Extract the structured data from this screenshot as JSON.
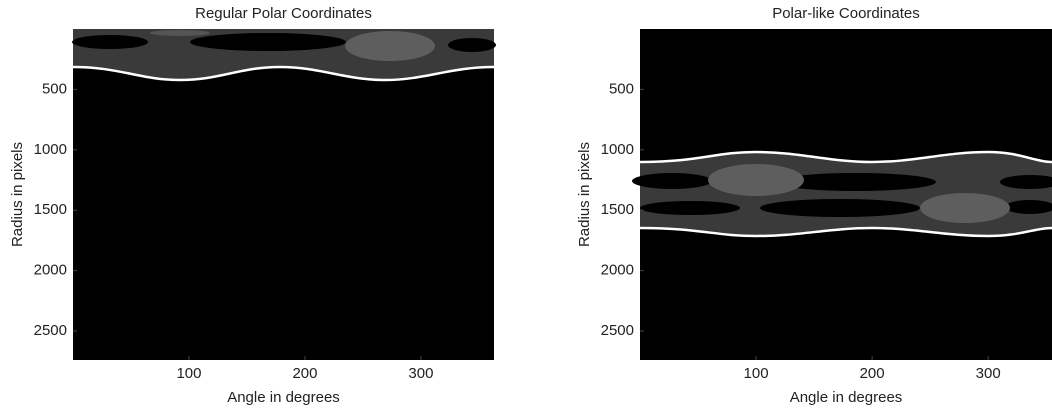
{
  "chart_data": [
    {
      "type": "image",
      "title": "Regular Polar Coordinates",
      "xlabel": "Angle in degrees",
      "ylabel": "Radius in pixels",
      "xlim": [
        0,
        363
      ],
      "ylim": [
        0,
        2740
      ],
      "y_reversed": true,
      "xticks": [
        100,
        200,
        300
      ],
      "yticks": [
        500,
        1000,
        1500,
        2000,
        2500
      ],
      "colormap": "gray"
    },
    {
      "type": "image",
      "title": "Polar-like Coordinates",
      "xlabel": "Angle in degrees",
      "ylabel": "Radius in pixels",
      "xlim": [
        0,
        355
      ],
      "ylim": [
        0,
        2740
      ],
      "y_reversed": true,
      "xticks": [
        100,
        200,
        300
      ],
      "yticks": [
        500,
        1000,
        1500,
        2000,
        2500
      ],
      "colormap": "gray"
    }
  ]
}
